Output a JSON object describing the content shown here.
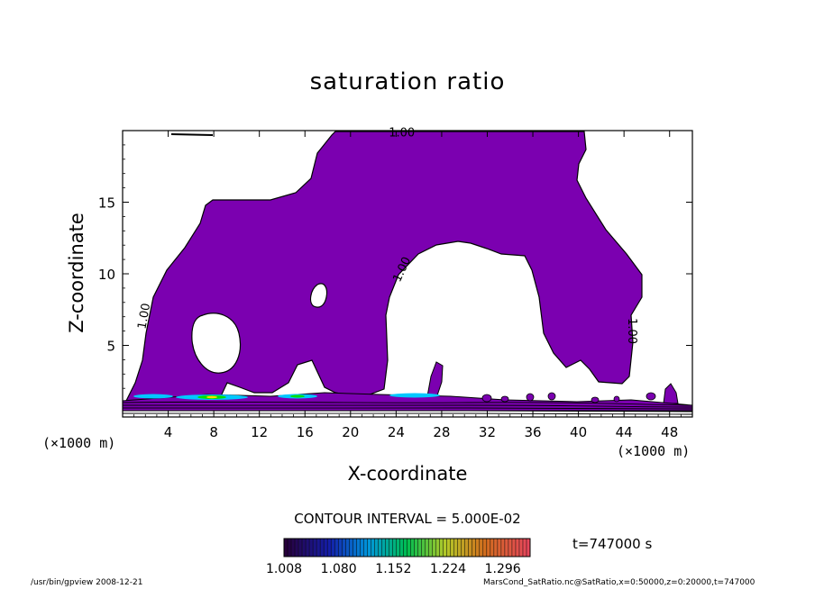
{
  "title": "saturation ratio",
  "ylabel": "Z-coordinate",
  "xlabel": "X-coordinate",
  "x_unit_left": "(×1000 m)",
  "x_unit_right": "(×1000 m)",
  "contour_interval_text": "CONTOUR INTERVAL = 5.000E-02",
  "time_text": "t=747000 s",
  "footer_left": "/usr/bin/gpview   2008-12-21",
  "footer_right": "MarsCond_SatRatio.nc@SatRatio,x=0:50000,z=0:20000,t=747000",
  "colors": {
    "fill": "#7b00b0",
    "high1": "#00c8ff",
    "high2": "#00e000",
    "high3": "#ffe000"
  },
  "chart_data": {
    "type": "heatmap",
    "title": "saturation ratio",
    "xlabel": "X-coordinate",
    "ylabel": "Z-coordinate",
    "xlim": [
      0,
      50
    ],
    "ylim": [
      0,
      20
    ],
    "xticks": [
      4,
      8,
      12,
      16,
      20,
      24,
      28,
      32,
      36,
      40,
      44,
      48
    ],
    "yticks": [
      5,
      10,
      15
    ],
    "contour_labels": [
      {
        "text": "1.00",
        "x": 24.5,
        "z": 19.6
      },
      {
        "text": "1.00",
        "x": 24.8,
        "z": 10.2
      },
      {
        "text": "1.00",
        "x": 2.2,
        "z": 7.0
      },
      {
        "text": "1.00",
        "x": 44.4,
        "z": 6.0
      }
    ],
    "colorbar": {
      "min": 1.008,
      "max": 1.332,
      "tick_labels": [
        "1.008",
        "1.080",
        "1.152",
        "1.224",
        "1.296"
      ],
      "tick_values": [
        1.008,
        1.08,
        1.152,
        1.224,
        1.296
      ]
    },
    "contour_interval": 0.05
  }
}
